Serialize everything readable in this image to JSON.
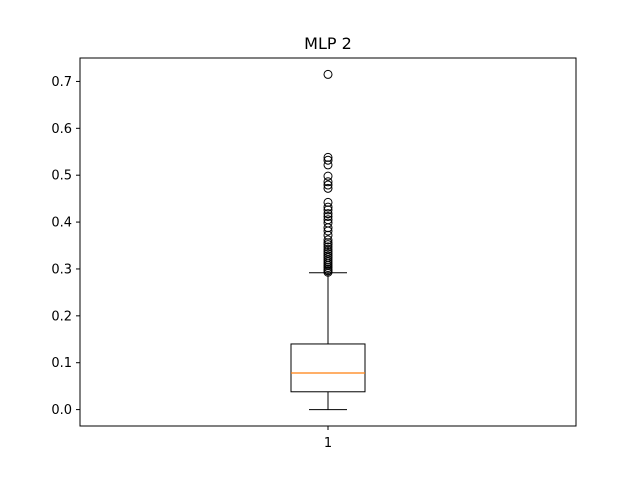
{
  "chart_data": {
    "type": "box",
    "title": "MLP 2",
    "xlabel": "",
    "ylabel": "",
    "categories": [
      "1"
    ],
    "ylim": [
      -0.035,
      0.75
    ],
    "yticks": [
      "0.0",
      "0.1",
      "0.2",
      "0.3",
      "0.4",
      "0.5",
      "0.6",
      "0.7"
    ],
    "grid": false,
    "box": {
      "whisker_low": 0.0,
      "q1": 0.038,
      "median": 0.078,
      "q3": 0.14,
      "whisker_high": 0.292,
      "outliers": [
        0.715,
        0.538,
        0.532,
        0.522,
        0.498,
        0.486,
        0.479,
        0.472,
        0.442,
        0.432,
        0.426,
        0.418,
        0.412,
        0.405,
        0.398,
        0.388,
        0.381,
        0.372,
        0.362,
        0.356,
        0.352,
        0.347,
        0.342,
        0.337,
        0.333,
        0.328,
        0.324,
        0.319,
        0.315,
        0.311,
        0.307,
        0.303,
        0.299,
        0.296,
        0.293
      ]
    },
    "colors": {
      "median": "#ff7f0e",
      "box": "#000000"
    }
  }
}
